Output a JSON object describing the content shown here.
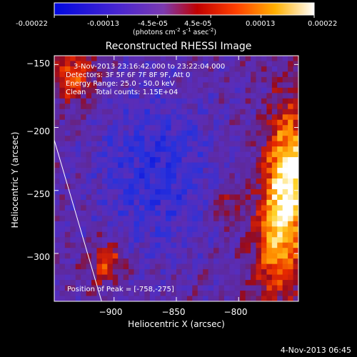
{
  "colorbar": {
    "ticks": [
      "-0.00022",
      "-0.00013",
      "-4.5e-05",
      "4.5e-05",
      "0.00013",
      "0.00022"
    ],
    "tick_values": [
      -0.00022,
      -0.00013,
      -4.5e-05,
      4.5e-05,
      0.00013,
      0.00022
    ],
    "range": [
      -0.00022,
      0.00022
    ],
    "unit_main": "(photons cm",
    "unit_sup1": "-2",
    "unit_mid": " s",
    "unit_sup2": "-1",
    "unit_end": " asec",
    "unit_sup3": "-2",
    "unit_close": ")"
  },
  "annotations": {
    "time": "3-Nov-2013 23:16:42.000 to 23:22:04.000",
    "detectors": "Detectors: 3F 5F 6F 7F 8F 9F, Att 0",
    "energy": "Energy Range: 25.0 - 50.0 keV",
    "clean": "Clean    Total counts: 1.15E+04",
    "peak": "Position of Peak = [-758,-275]"
  },
  "footer": {
    "timestamp": "4-Nov-2013 06:45"
  },
  "chart_data": {
    "type": "heatmap",
    "title": "Reconstructed RHESSI Image",
    "xlabel": "Heliocentric X (arcsec)",
    "ylabel": "Heliocentric Y (arcsec)",
    "xlim": [
      -948,
      -752
    ],
    "ylim": [
      -338,
      -143
    ],
    "xticks": [
      -900,
      -850,
      -800
    ],
    "yticks": [
      -300,
      -250,
      -200,
      -150
    ],
    "xtick_labels": [
      "−900",
      "−850",
      "−800"
    ],
    "ytick_labels": [
      "−300",
      "−250",
      "−200",
      "−150"
    ],
    "colormap": "rainbow-to-hot (blue, purple, red, orange, yellow, white)",
    "peak_position": [
      -758,
      -275
    ],
    "limb_line": {
      "x": [
        -948,
        -910
      ],
      "y": [
        -210,
        -338
      ]
    },
    "grid": false
  }
}
